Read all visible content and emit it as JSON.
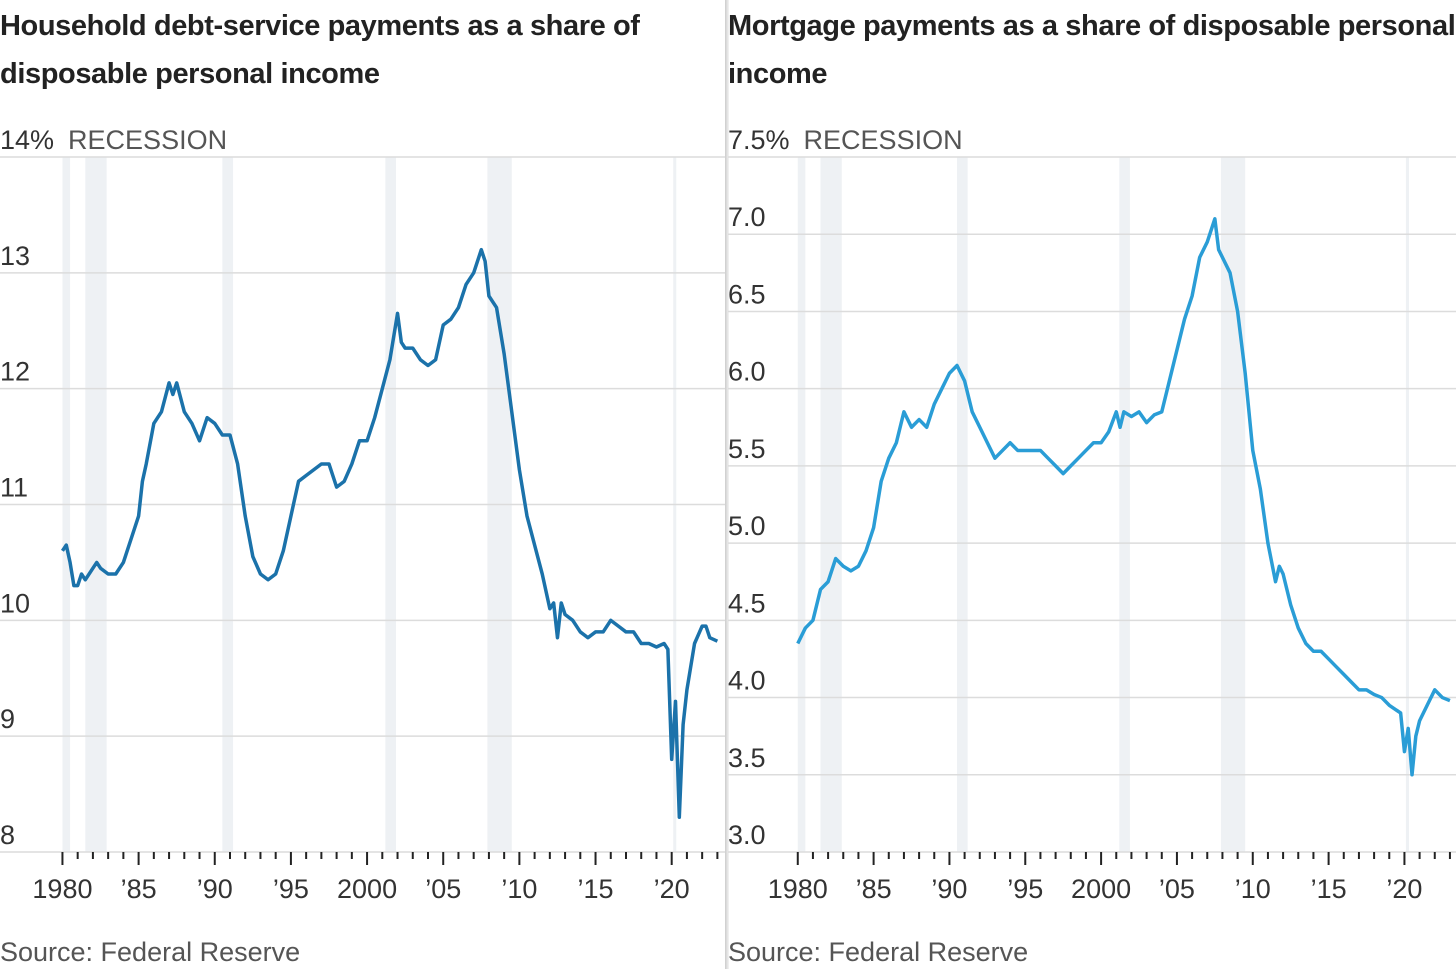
{
  "chart_data": [
    {
      "type": "line",
      "title": "Household debt-service payments as a share of disposable personal income",
      "legend_label": "RECESSION",
      "source": "Source: Federal Reserve",
      "color": "#1b72aa",
      "recession_color": "#eef1f4",
      "recessions": [
        [
          1980.0,
          1980.5
        ],
        [
          1981.5,
          1982.9
        ],
        [
          1990.5,
          1991.2
        ],
        [
          2001.2,
          2001.9
        ],
        [
          2007.9,
          2009.5
        ],
        [
          2020.1,
          2020.3
        ]
      ],
      "xlim": [
        1975.9,
        2023.5
      ],
      "xticks": [
        1980,
        {
          "value": 1985,
          "label": "’85"
        },
        {
          "value": 1990,
          "label": "’90"
        },
        {
          "value": 1995,
          "label": "’95"
        },
        2000,
        {
          "value": 2005,
          "label": "’05"
        },
        {
          "value": 2010,
          "label": "’10"
        },
        {
          "value": 2015,
          "label": "’15"
        },
        {
          "value": 2020,
          "label": "’20"
        }
      ],
      "xminor_ticks": [
        1981,
        1982,
        1983,
        1984,
        1986,
        1987,
        1988,
        1989,
        1991,
        1992,
        1993,
        1994,
        1996,
        1997,
        1998,
        1999,
        2001,
        2002,
        2003,
        2004,
        2006,
        2007,
        2008,
        2009,
        2011,
        2012,
        2013,
        2014,
        2016,
        2017,
        2018,
        2019,
        2021,
        2022,
        2023
      ],
      "ylim": [
        8,
        14
      ],
      "yticks": [
        8,
        9,
        10,
        11,
        12,
        13,
        {
          "value": 14,
          "label": "14%"
        }
      ],
      "grid": true,
      "x": [
        1980,
        1980.25,
        1980.5,
        1980.75,
        1981,
        1981.25,
        1981.5,
        1982,
        1982.25,
        1982.5,
        1983,
        1983.5,
        1984,
        1984.5,
        1985,
        1985.25,
        1985.5,
        1986,
        1986.5,
        1987,
        1987.25,
        1987.5,
        1988,
        1988.5,
        1989,
        1989.5,
        1990,
        1990.5,
        1991,
        1991.5,
        1992,
        1992.5,
        1993,
        1993.5,
        1994,
        1994.5,
        1995,
        1995.5,
        1996,
        1996.5,
        1997,
        1997.5,
        1998,
        1998.5,
        1999,
        1999.5,
        2000,
        2000.5,
        2001,
        2001.5,
        2002,
        2002.25,
        2002.5,
        2003,
        2003.5,
        2004,
        2004.5,
        2005,
        2005.5,
        2006,
        2006.5,
        2007,
        2007.5,
        2007.75,
        2008,
        2008.5,
        2009,
        2009.5,
        2010,
        2010.5,
        2011,
        2011.5,
        2012,
        2012.25,
        2012.5,
        2012.75,
        2013,
        2013.5,
        2014,
        2014.5,
        2015,
        2015.5,
        2016,
        2016.5,
        2017,
        2017.5,
        2018,
        2018.5,
        2019,
        2019.5,
        2019.75,
        2020,
        2020.25,
        2020.5,
        2020.75,
        2021,
        2021.5,
        2022,
        2022.25,
        2022.5,
        2023
      ],
      "values": [
        10.6,
        10.65,
        10.5,
        10.3,
        10.3,
        10.4,
        10.35,
        10.45,
        10.5,
        10.45,
        10.4,
        10.4,
        10.5,
        10.7,
        10.9,
        11.2,
        11.35,
        11.7,
        11.8,
        12.05,
        11.95,
        12.05,
        11.8,
        11.7,
        11.55,
        11.75,
        11.7,
        11.6,
        11.6,
        11.35,
        10.9,
        10.55,
        10.4,
        10.35,
        10.4,
        10.6,
        10.9,
        11.2,
        11.25,
        11.3,
        11.35,
        11.35,
        11.15,
        11.2,
        11.35,
        11.55,
        11.55,
        11.75,
        12.0,
        12.25,
        12.65,
        12.4,
        12.35,
        12.35,
        12.25,
        12.2,
        12.25,
        12.55,
        12.6,
        12.7,
        12.9,
        13.0,
        13.2,
        13.1,
        12.8,
        12.7,
        12.3,
        11.8,
        11.3,
        10.9,
        10.65,
        10.4,
        10.1,
        10.15,
        9.85,
        10.15,
        10.05,
        10.0,
        9.9,
        9.85,
        9.9,
        9.9,
        10.0,
        9.95,
        9.9,
        9.9,
        9.8,
        9.8,
        9.77,
        9.8,
        9.75,
        8.8,
        9.3,
        8.3,
        9.1,
        9.4,
        9.8,
        9.95,
        9.95,
        9.85,
        9.82
      ]
    },
    {
      "type": "line",
      "title": "Mortgage payments as a share of disposable personal income",
      "legend_label": "RECESSION",
      "source": "Source: Federal Reserve",
      "color": "#2a9dd6",
      "recession_color": "#eef1f4",
      "recessions": [
        [
          1980.0,
          1980.5
        ],
        [
          1981.5,
          1982.9
        ],
        [
          1990.5,
          1991.2
        ],
        [
          2001.2,
          2001.9
        ],
        [
          2007.9,
          2009.5
        ],
        [
          2020.1,
          2020.3
        ]
      ],
      "xlim": [
        1975.4,
        2023.4
      ],
      "xticks": [
        1980,
        {
          "value": 1985,
          "label": "’85"
        },
        {
          "value": 1990,
          "label": "’90"
        },
        {
          "value": 1995,
          "label": "’95"
        },
        2000,
        {
          "value": 2005,
          "label": "’05"
        },
        {
          "value": 2010,
          "label": "’10"
        },
        {
          "value": 2015,
          "label": "’15"
        },
        {
          "value": 2020,
          "label": "’20"
        }
      ],
      "xminor_ticks": [
        1981,
        1982,
        1983,
        1984,
        1986,
        1987,
        1988,
        1989,
        1991,
        1992,
        1993,
        1994,
        1996,
        1997,
        1998,
        1999,
        2001,
        2002,
        2003,
        2004,
        2006,
        2007,
        2008,
        2009,
        2011,
        2012,
        2013,
        2014,
        2016,
        2017,
        2018,
        2019,
        2021,
        2022,
        2023
      ],
      "ylim": [
        3,
        7.5
      ],
      "yticks": [
        {
          "value": 3,
          "label": "3.0"
        },
        3.5,
        {
          "value": 4,
          "label": "4.0"
        },
        4.5,
        {
          "value": 5,
          "label": "5.0"
        },
        5.5,
        {
          "value": 6,
          "label": "6.0"
        },
        6.5,
        {
          "value": 7,
          "label": "7.0"
        },
        {
          "value": 7.5,
          "label": "7.5%"
        }
      ],
      "grid": true,
      "x": [
        1980,
        1980.5,
        1981,
        1981.5,
        1982,
        1982.5,
        1983,
        1983.5,
        1984,
        1984.5,
        1985,
        1985.5,
        1986,
        1986.5,
        1987,
        1987.5,
        1988,
        1988.5,
        1989,
        1989.5,
        1990,
        1990.5,
        1991,
        1991.5,
        1992,
        1992.5,
        1993,
        1993.5,
        1994,
        1994.5,
        1995,
        1995.5,
        1996,
        1996.5,
        1997,
        1997.5,
        1998,
        1998.5,
        1999,
        1999.5,
        2000,
        2000.5,
        2001,
        2001.25,
        2001.5,
        2002,
        2002.5,
        2003,
        2003.5,
        2004,
        2004.5,
        2005,
        2005.5,
        2006,
        2006.5,
        2007,
        2007.5,
        2007.75,
        2008,
        2008.5,
        2009,
        2009.5,
        2010,
        2010.5,
        2011,
        2011.5,
        2011.75,
        2012,
        2012.5,
        2013,
        2013.5,
        2014,
        2014.5,
        2015,
        2015.5,
        2016,
        2016.5,
        2017,
        2017.5,
        2018,
        2018.5,
        2019,
        2019.75,
        2020,
        2020.25,
        2020.5,
        2020.75,
        2021,
        2021.5,
        2022,
        2022.5,
        2023
      ],
      "values": [
        4.35,
        4.45,
        4.5,
        4.7,
        4.75,
        4.9,
        4.85,
        4.82,
        4.85,
        4.95,
        5.1,
        5.4,
        5.55,
        5.65,
        5.85,
        5.75,
        5.8,
        5.75,
        5.9,
        6.0,
        6.1,
        6.15,
        6.05,
        5.85,
        5.75,
        5.65,
        5.55,
        5.6,
        5.65,
        5.6,
        5.6,
        5.6,
        5.6,
        5.55,
        5.5,
        5.45,
        5.5,
        5.55,
        5.6,
        5.65,
        5.65,
        5.72,
        5.85,
        5.75,
        5.85,
        5.82,
        5.85,
        5.78,
        5.83,
        5.85,
        6.05,
        6.25,
        6.45,
        6.6,
        6.85,
        6.95,
        7.1,
        6.9,
        6.85,
        6.75,
        6.5,
        6.1,
        5.6,
        5.35,
        5.0,
        4.75,
        4.85,
        4.8,
        4.6,
        4.45,
        4.35,
        4.3,
        4.3,
        4.25,
        4.2,
        4.15,
        4.1,
        4.05,
        4.05,
        4.02,
        4.0,
        3.95,
        3.9,
        3.65,
        3.8,
        3.5,
        3.75,
        3.85,
        3.95,
        4.05,
        4.0,
        3.98
      ]
    }
  ]
}
